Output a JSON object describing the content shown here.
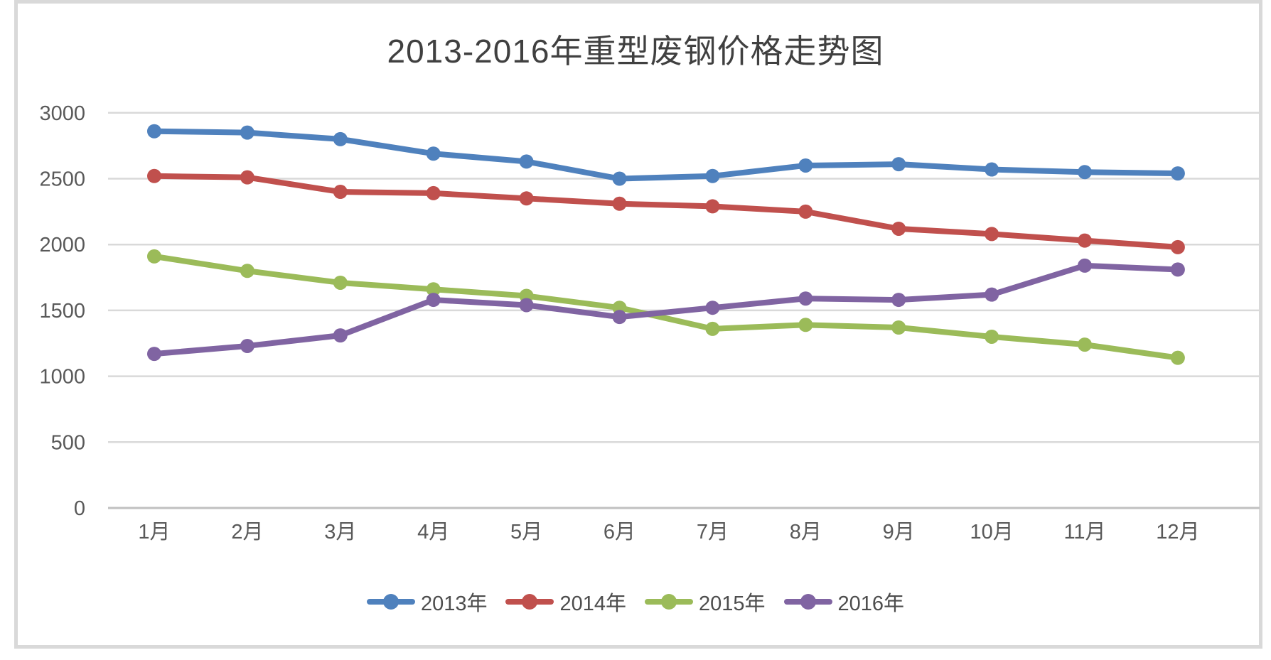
{
  "frame": {
    "border_color": "#d9d9d9",
    "background_color": "#ffffff"
  },
  "chart_data": {
    "type": "line",
    "title": "2013-2016年重型废钢价格走势图",
    "title_color": "#404040",
    "categories": [
      "1月",
      "2月",
      "3月",
      "4月",
      "5月",
      "6月",
      "7月",
      "8月",
      "9月",
      "10月",
      "11月",
      "12月"
    ],
    "series": [
      {
        "name": "2013年",
        "color": "#4F81BD",
        "values": [
          2860,
          2850,
          2800,
          2690,
          2630,
          2500,
          2520,
          2600,
          2610,
          2570,
          2550,
          2540
        ]
      },
      {
        "name": "2014年",
        "color": "#C0504D",
        "values": [
          2520,
          2510,
          2400,
          2390,
          2350,
          2310,
          2290,
          2250,
          2120,
          2080,
          2030,
          1980
        ]
      },
      {
        "name": "2015年",
        "color": "#9BBB59",
        "values": [
          1910,
          1800,
          1710,
          1660,
          1610,
          1520,
          1360,
          1390,
          1370,
          1300,
          1240,
          1140
        ]
      },
      {
        "name": "2016年",
        "color": "#8064A2",
        "values": [
          1170,
          1230,
          1310,
          1580,
          1540,
          1450,
          1520,
          1590,
          1580,
          1620,
          1840,
          1810
        ]
      }
    ],
    "xlabel": "",
    "ylabel": "",
    "ylim": [
      0,
      3000
    ],
    "yticks": [
      0,
      500,
      1000,
      1500,
      2000,
      2500,
      3000
    ],
    "grid": true,
    "gridline_color": "#d9d9d9",
    "axis_line_color": "#c0c0c0",
    "tick_label_color": "#595959",
    "legend_position": "bottom"
  }
}
